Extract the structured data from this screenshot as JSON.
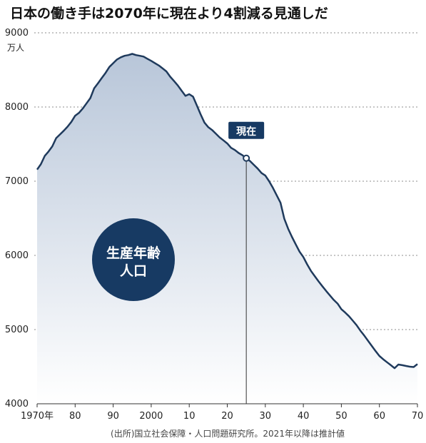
{
  "chart_data": {
    "type": "area",
    "title": "日本の働き手は2070年に現在より4割減る見通しだ",
    "y_unit": "万人",
    "xlim": [
      1970,
      2070
    ],
    "ylim": [
      4000,
      9000
    ],
    "y_ticks": [
      "9000",
      "8000",
      "7000",
      "6000",
      "5000",
      "4000"
    ],
    "x_ticks": [
      {
        "x": 1970,
        "label": "1970年"
      },
      {
        "x": 1980,
        "label": "80"
      },
      {
        "x": 1990,
        "label": "90"
      },
      {
        "x": 2000,
        "label": "2000"
      },
      {
        "x": 2010,
        "label": "10"
      },
      {
        "x": 2020,
        "label": "20"
      },
      {
        "x": 2030,
        "label": "30"
      },
      {
        "x": 2040,
        "label": "40"
      },
      {
        "x": 2050,
        "label": "50"
      },
      {
        "x": 2060,
        "label": "60"
      },
      {
        "x": 2070,
        "label": "70"
      }
    ],
    "series": [
      {
        "x": [
          1970,
          1971,
          1972,
          1973,
          1974,
          1975,
          1976,
          1977,
          1978,
          1979,
          1980,
          1981,
          1982,
          1983,
          1984,
          1985,
          1986,
          1987,
          1988,
          1989,
          1990,
          1991,
          1992,
          1993,
          1994,
          1995,
          1996,
          1997,
          1998,
          1999,
          2000,
          2001,
          2002,
          2003,
          2004,
          2005,
          2006,
          2007,
          2008,
          2009,
          2010,
          2011,
          2012,
          2013,
          2014,
          2015,
          2016,
          2017,
          2018,
          2019,
          2020,
          2021,
          2022,
          2023,
          2024,
          2025,
          2026,
          2027,
          2028,
          2029,
          2030,
          2031,
          2032,
          2033,
          2034,
          2035,
          2036,
          2037,
          2038,
          2039,
          2040,
          2041,
          2042,
          2043,
          2044,
          2045,
          2046,
          2047,
          2048,
          2049,
          2050,
          2051,
          2052,
          2053,
          2054,
          2055,
          2056,
          2057,
          2058,
          2059,
          2060,
          2061,
          2062,
          2063,
          2064,
          2065,
          2066,
          2067,
          2068,
          2069,
          2070
        ],
        "y": [
          7157,
          7230,
          7340,
          7400,
          7470,
          7581,
          7630,
          7680,
          7735,
          7800,
          7883,
          7920,
          7980,
          8050,
          8120,
          8251,
          8320,
          8390,
          8460,
          8540,
          8590,
          8640,
          8670,
          8690,
          8700,
          8716,
          8700,
          8690,
          8680,
          8650,
          8622,
          8590,
          8560,
          8520,
          8480,
          8409,
          8350,
          8290,
          8220,
          8150,
          8173,
          8140,
          8020,
          7900,
          7790,
          7728,
          7690,
          7640,
          7590,
          7550,
          7509,
          7450,
          7420,
          7380,
          7350,
          7310,
          7270,
          7220,
          7170,
          7110,
          7076,
          7000,
          6910,
          6810,
          6710,
          6494,
          6360,
          6250,
          6150,
          6050,
          5978,
          5880,
          5790,
          5720,
          5650,
          5584,
          5520,
          5460,
          5400,
          5350,
          5275,
          5230,
          5180,
          5120,
          5060,
          4985,
          4920,
          4850,
          4780,
          4710,
          4644,
          4600,
          4560,
          4520,
          4480,
          4529,
          4520,
          4510,
          4500,
          4495,
          4535
        ]
      }
    ],
    "now_marker": {
      "x": 2025,
      "y": 7310,
      "label": "現在"
    },
    "circle_label": [
      "生産年齢",
      "人口"
    ],
    "source": "(出所)国立社会保障・人口問題研究所。2021年以降は推計値",
    "colors": {
      "line": "#1f3a5c",
      "fill_top": "#b8c6d9",
      "fill_bottom": "#ffffff",
      "circle": "#173a63",
      "label_box": "#173a63",
      "marker_fill": "#ffffff"
    }
  }
}
